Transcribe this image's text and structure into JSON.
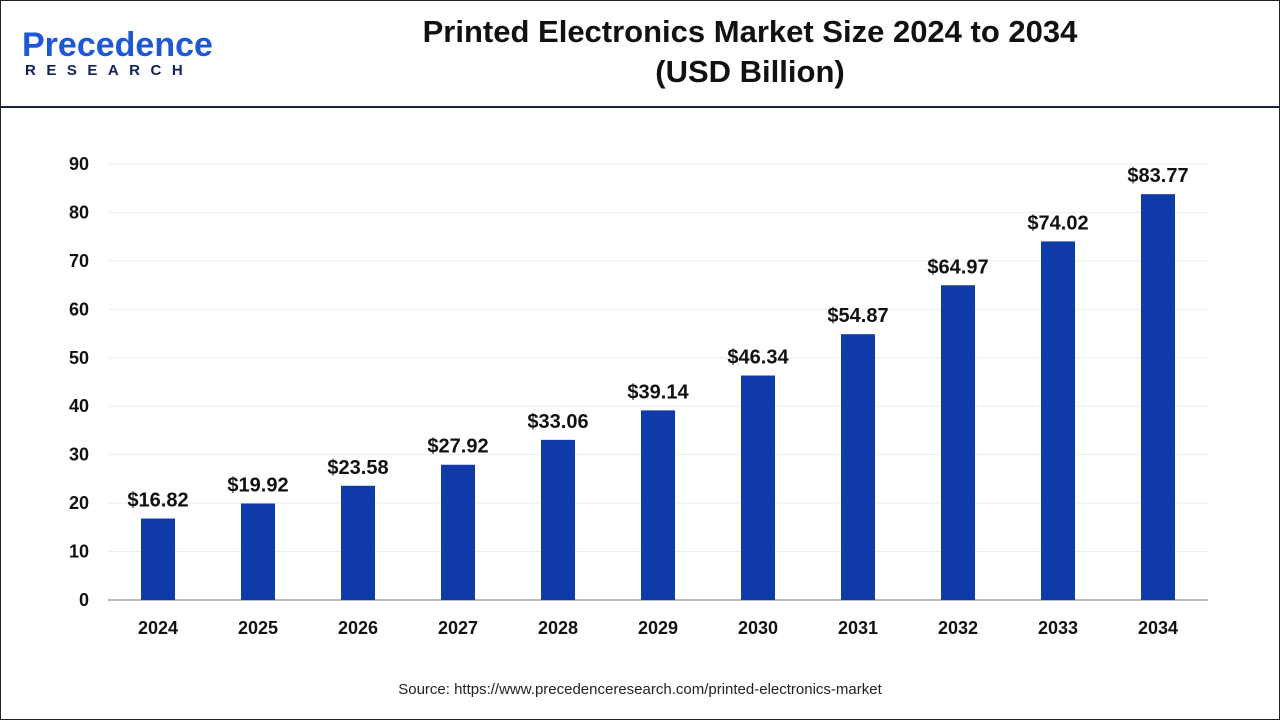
{
  "header": {
    "title_line1": "Printed Electronics Market Size 2024 to 2034",
    "title_line2": "(USD Billion)"
  },
  "logo": {
    "text_top": "Precedence",
    "text_bottom": "RESEARCH"
  },
  "source": "Source: https://www.precedenceresearch.com/printed-electronics-market",
  "colors": {
    "bar": "#0f3aa8",
    "grid": "#eeeeee",
    "axis": "#bbbbbb"
  },
  "chart_data": {
    "type": "bar",
    "title": "Printed Electronics Market Size 2024 to 2034 (USD Billion)",
    "categories": [
      "2024",
      "2025",
      "2026",
      "2027",
      "2028",
      "2029",
      "2030",
      "2031",
      "2032",
      "2033",
      "2034"
    ],
    "values": [
      16.82,
      19.92,
      23.58,
      27.92,
      33.06,
      39.14,
      46.34,
      54.87,
      64.97,
      74.02,
      83.77
    ],
    "data_labels": [
      "$16.82",
      "$19.92",
      "$23.58",
      "$27.92",
      "$33.06",
      "$39.14",
      "$46.34",
      "$54.87",
      "$64.97",
      "$74.02",
      "$83.77"
    ],
    "yticks": [
      0,
      10,
      20,
      30,
      40,
      50,
      60,
      70,
      80,
      90
    ],
    "ylim": [
      0,
      90
    ],
    "grid": true,
    "xlabel": "",
    "ylabel": ""
  }
}
